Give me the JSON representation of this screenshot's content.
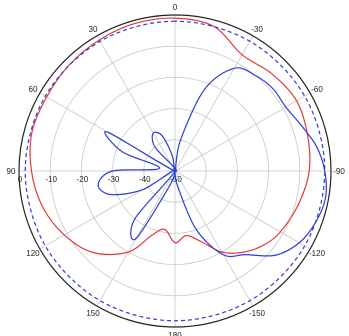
{
  "chart_data": {
    "type": "line",
    "subtype": "polar",
    "title": "",
    "angle_convention": "0 at top, positive angles counter-clockwise, negative clockwise",
    "angle_tick_labels": [
      "0",
      "30",
      "60",
      "90",
      "120",
      "150",
      "180",
      "-150",
      "-120",
      "-90",
      "-60",
      "-30"
    ],
    "radial_tick_labels": [
      "0",
      "-10",
      "-20",
      "-30",
      "-40",
      "-50"
    ],
    "rlim": [
      -50,
      0
    ],
    "grid": true,
    "legend": "none",
    "colors": {
      "red_series": "#e03a3a",
      "blue_series": "#2a3fd6",
      "dashed_series": "#2a3fd6",
      "grid": "#c8c8c8",
      "frame": "#222222"
    },
    "series": [
      {
        "style": "solid",
        "color": "#e03a3a",
        "theta": [
          0,
          15,
          30,
          45,
          60,
          75,
          90,
          105,
          120,
          135,
          150,
          160,
          170,
          180,
          -170,
          -160,
          -150,
          -140,
          -130,
          -120,
          -105,
          -90,
          -75,
          -60,
          -45,
          -30,
          -15
        ],
        "r": [
          -1,
          -1,
          -1.5,
          -2,
          -2.5,
          -2.5,
          -4,
          -6,
          -9,
          -13,
          -20,
          -28,
          -31,
          -27,
          -29,
          -26,
          -20,
          -16,
          -13,
          -11,
          -9,
          -7,
          -6,
          -5,
          -6,
          -7,
          -2
        ]
      },
      {
        "style": "solid",
        "color": "#2a3fd6",
        "theta": [
          0,
          10,
          20,
          30,
          40,
          50,
          60,
          70,
          80,
          90,
          100,
          110,
          120,
          130,
          140,
          150,
          160,
          170,
          180,
          -170,
          -160,
          -150,
          -140,
          -130,
          -120,
          -110,
          -100,
          -90,
          -80,
          -70,
          -60,
          -50,
          -40,
          -30,
          -20,
          -10
        ],
        "r": [
          -50,
          -45,
          -38,
          -36,
          -40,
          -50,
          -25,
          -32,
          -45,
          -30,
          -25,
          -28,
          -38,
          -50,
          -30,
          -25,
          -45,
          -50,
          -50,
          -45,
          -30,
          -19,
          -15,
          -8,
          -4,
          -2,
          -1,
          -2,
          -4,
          -7,
          -9,
          -9,
          -10,
          -12,
          -22,
          -40
        ]
      },
      {
        "style": "dashed",
        "color": "#2a3fd6",
        "theta": [
          0,
          30,
          60,
          90,
          120,
          150,
          180,
          -150,
          -120,
          -90,
          -60,
          -30
        ],
        "r": [
          -2,
          -2,
          -2,
          -2,
          -2,
          -2,
          -2,
          -2,
          -2,
          -2,
          -2,
          -2
        ]
      }
    ]
  }
}
